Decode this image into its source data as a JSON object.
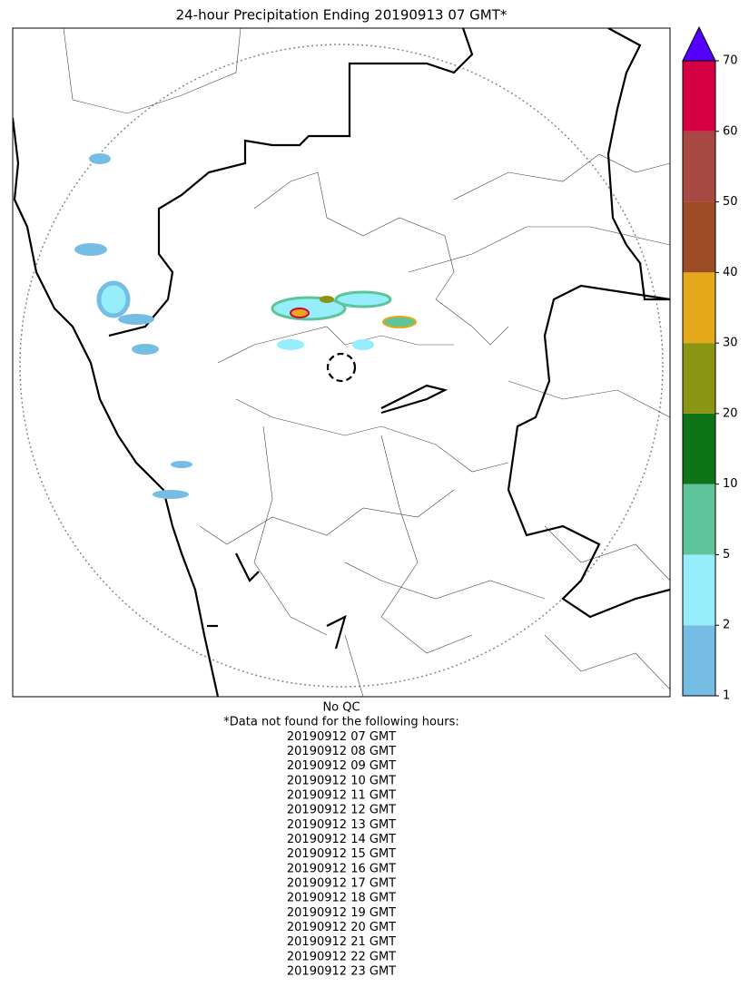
{
  "title": "24-hour Precipitation Ending 20190913 07 GMT*",
  "colorbar": {
    "levels": [
      1,
      2,
      5,
      10,
      20,
      30,
      40,
      50,
      60,
      70
    ],
    "colors": [
      "#76bde3",
      "#96eefa",
      "#5ec49a",
      "#0f7317",
      "#8c9413",
      "#e6a91a",
      "#9c4d25",
      "#a84a43",
      "#d50043"
    ],
    "extend_color": "#5500ff"
  },
  "notes": [
    "No QC",
    "*Data not found for the following hours:",
    "20190912 07 GMT",
    "20190912 08 GMT",
    "20190912 09 GMT",
    "20190912 10 GMT",
    "20190912 11 GMT",
    "20190912 12 GMT",
    "20190912 13 GMT",
    "20190912 14 GMT",
    "20190912 15 GMT",
    "20190912 16 GMT",
    "20190912 17 GMT",
    "20190912 18 GMT",
    "20190912 19 GMT",
    "20190912 20 GMT",
    "20190912 21 GMT",
    "20190912 22 GMT",
    "20190912 23 GMT"
  ]
}
